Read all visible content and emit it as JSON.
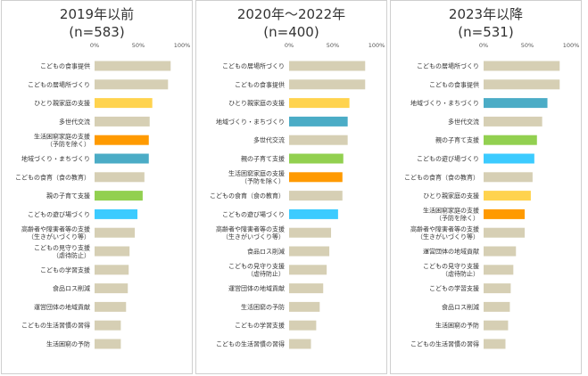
{
  "colors": {
    "default": "#d6cfb4",
    "yellow": "#ffd34e",
    "orange": "#ff9a00",
    "teal": "#4bacc6",
    "green": "#92d050",
    "cyan": "#3ccbff"
  },
  "chart_data": [
    {
      "type": "bar",
      "orientation": "horizontal",
      "title_line1": "2019年以前",
      "title_line2": "(n=583)",
      "xlim": [
        0,
        100
      ],
      "xticks": [
        "0%",
        "50%",
        "100%"
      ],
      "bars": [
        {
          "label": [
            "こどもの食事提供"
          ],
          "value": 87,
          "color": "default"
        },
        {
          "label": [
            "こどもの居場所づくり"
          ],
          "value": 84,
          "color": "default"
        },
        {
          "label": [
            "ひとり親家庭の支援"
          ],
          "value": 66,
          "color": "yellow"
        },
        {
          "label": [
            "多世代交流"
          ],
          "value": 63,
          "color": "default"
        },
        {
          "label": [
            "生活困窮家庭の支援",
            "（予防を除く）"
          ],
          "value": 62,
          "color": "orange"
        },
        {
          "label": [
            "地域づくり・まちづくり"
          ],
          "value": 62,
          "color": "teal"
        },
        {
          "label": [
            "こどもの食育（食の教育）"
          ],
          "value": 57,
          "color": "default"
        },
        {
          "label": [
            "親の子育て支援"
          ],
          "value": 55,
          "color": "green"
        },
        {
          "label": [
            "こどもの遊び場づくり"
          ],
          "value": 49,
          "color": "cyan"
        },
        {
          "label": [
            "高齢者や障害者等の支援",
            "（生きがいづくり等）"
          ],
          "value": 46,
          "color": "default"
        },
        {
          "label": [
            "こどもの見守り支援",
            "（虐待防止）"
          ],
          "value": 40,
          "color": "default"
        },
        {
          "label": [
            "こどもの学習支援"
          ],
          "value": 39,
          "color": "default"
        },
        {
          "label": [
            "食品ロス削減"
          ],
          "value": 38,
          "color": "default"
        },
        {
          "label": [
            "運営団体の地域貢献"
          ],
          "value": 36,
          "color": "default"
        },
        {
          "label": [
            "こどもの生活習慣の習得"
          ],
          "value": 30,
          "color": "default"
        },
        {
          "label": [
            "生活困窮の予防"
          ],
          "value": 30,
          "color": "default"
        }
      ]
    },
    {
      "type": "bar",
      "orientation": "horizontal",
      "title_line1": "2020年～2022年",
      "title_line2": "(n=400)",
      "xlim": [
        0,
        100
      ],
      "xticks": [
        "0%",
        "50%",
        "100%"
      ],
      "bars": [
        {
          "label": [
            "こどもの居場所づくり"
          ],
          "value": 87,
          "color": "default"
        },
        {
          "label": [
            "こどもの食事提供"
          ],
          "value": 87,
          "color": "default"
        },
        {
          "label": [
            "ひとり親家庭の支援"
          ],
          "value": 69,
          "color": "yellow"
        },
        {
          "label": [
            "地域づくり・まちづくり"
          ],
          "value": 67,
          "color": "teal"
        },
        {
          "label": [
            "多世代交流"
          ],
          "value": 67,
          "color": "default"
        },
        {
          "label": [
            "親の子育て支援"
          ],
          "value": 62,
          "color": "green"
        },
        {
          "label": [
            "生活困窮家庭の支援",
            "（予防を除く）"
          ],
          "value": 61,
          "color": "orange"
        },
        {
          "label": [
            "こどもの食育（食の教育）"
          ],
          "value": 61,
          "color": "default"
        },
        {
          "label": [
            "こどもの遊び場づくり"
          ],
          "value": 56,
          "color": "cyan"
        },
        {
          "label": [
            "高齢者や障害者等の支援",
            "（生きがいづくり等）"
          ],
          "value": 48,
          "color": "default"
        },
        {
          "label": [
            "食品ロス削減"
          ],
          "value": 46,
          "color": "default"
        },
        {
          "label": [
            "こどもの見守り支援",
            "（虐待防止）"
          ],
          "value": 43,
          "color": "default"
        },
        {
          "label": [
            "運営団体の地域貢献"
          ],
          "value": 39,
          "color": "default"
        },
        {
          "label": [
            "生活困窮の予防"
          ],
          "value": 35,
          "color": "default"
        },
        {
          "label": [
            "こどもの学習支援"
          ],
          "value": 31,
          "color": "default"
        },
        {
          "label": [
            "こどもの生活習慣の習得"
          ],
          "value": 25,
          "color": "default"
        }
      ]
    },
    {
      "type": "bar",
      "orientation": "horizontal",
      "title_line1": "2023年以降",
      "title_line2": "(n=531)",
      "xlim": [
        0,
        100
      ],
      "xticks": [
        "0%",
        "50%",
        "100%"
      ],
      "bars": [
        {
          "label": [
            "こどもの居場所づくり"
          ],
          "value": 87,
          "color": "default"
        },
        {
          "label": [
            "こどもの食事提供"
          ],
          "value": 87,
          "color": "default"
        },
        {
          "label": [
            "地域づくり・まちづくり"
          ],
          "value": 73,
          "color": "teal"
        },
        {
          "label": [
            "多世代交流"
          ],
          "value": 67,
          "color": "default"
        },
        {
          "label": [
            "親の子育て支援"
          ],
          "value": 61,
          "color": "green"
        },
        {
          "label": [
            "こどもの遊び場づくり"
          ],
          "value": 58,
          "color": "cyan"
        },
        {
          "label": [
            "こどもの食育（食の教育）"
          ],
          "value": 56,
          "color": "default"
        },
        {
          "label": [
            "ひとり親家庭の支援"
          ],
          "value": 54,
          "color": "yellow"
        },
        {
          "label": [
            "生活困窮家庭の支援",
            "（予防を除く）"
          ],
          "value": 47,
          "color": "orange"
        },
        {
          "label": [
            "高齢者や障害者等の支援",
            "（生きがいづくり等）"
          ],
          "value": 47,
          "color": "default"
        },
        {
          "label": [
            "運営団体の地域貢献"
          ],
          "value": 37,
          "color": "default"
        },
        {
          "label": [
            "こどもの見守り支援",
            "（虐待防止）"
          ],
          "value": 34,
          "color": "default"
        },
        {
          "label": [
            "こどもの学習支援"
          ],
          "value": 31,
          "color": "default"
        },
        {
          "label": [
            "食品ロス削減"
          ],
          "value": 30,
          "color": "default"
        },
        {
          "label": [
            "生活困窮の予防"
          ],
          "value": 28,
          "color": "default"
        },
        {
          "label": [
            "こどもの生活習慣の習得"
          ],
          "value": 25,
          "color": "default"
        }
      ]
    }
  ]
}
